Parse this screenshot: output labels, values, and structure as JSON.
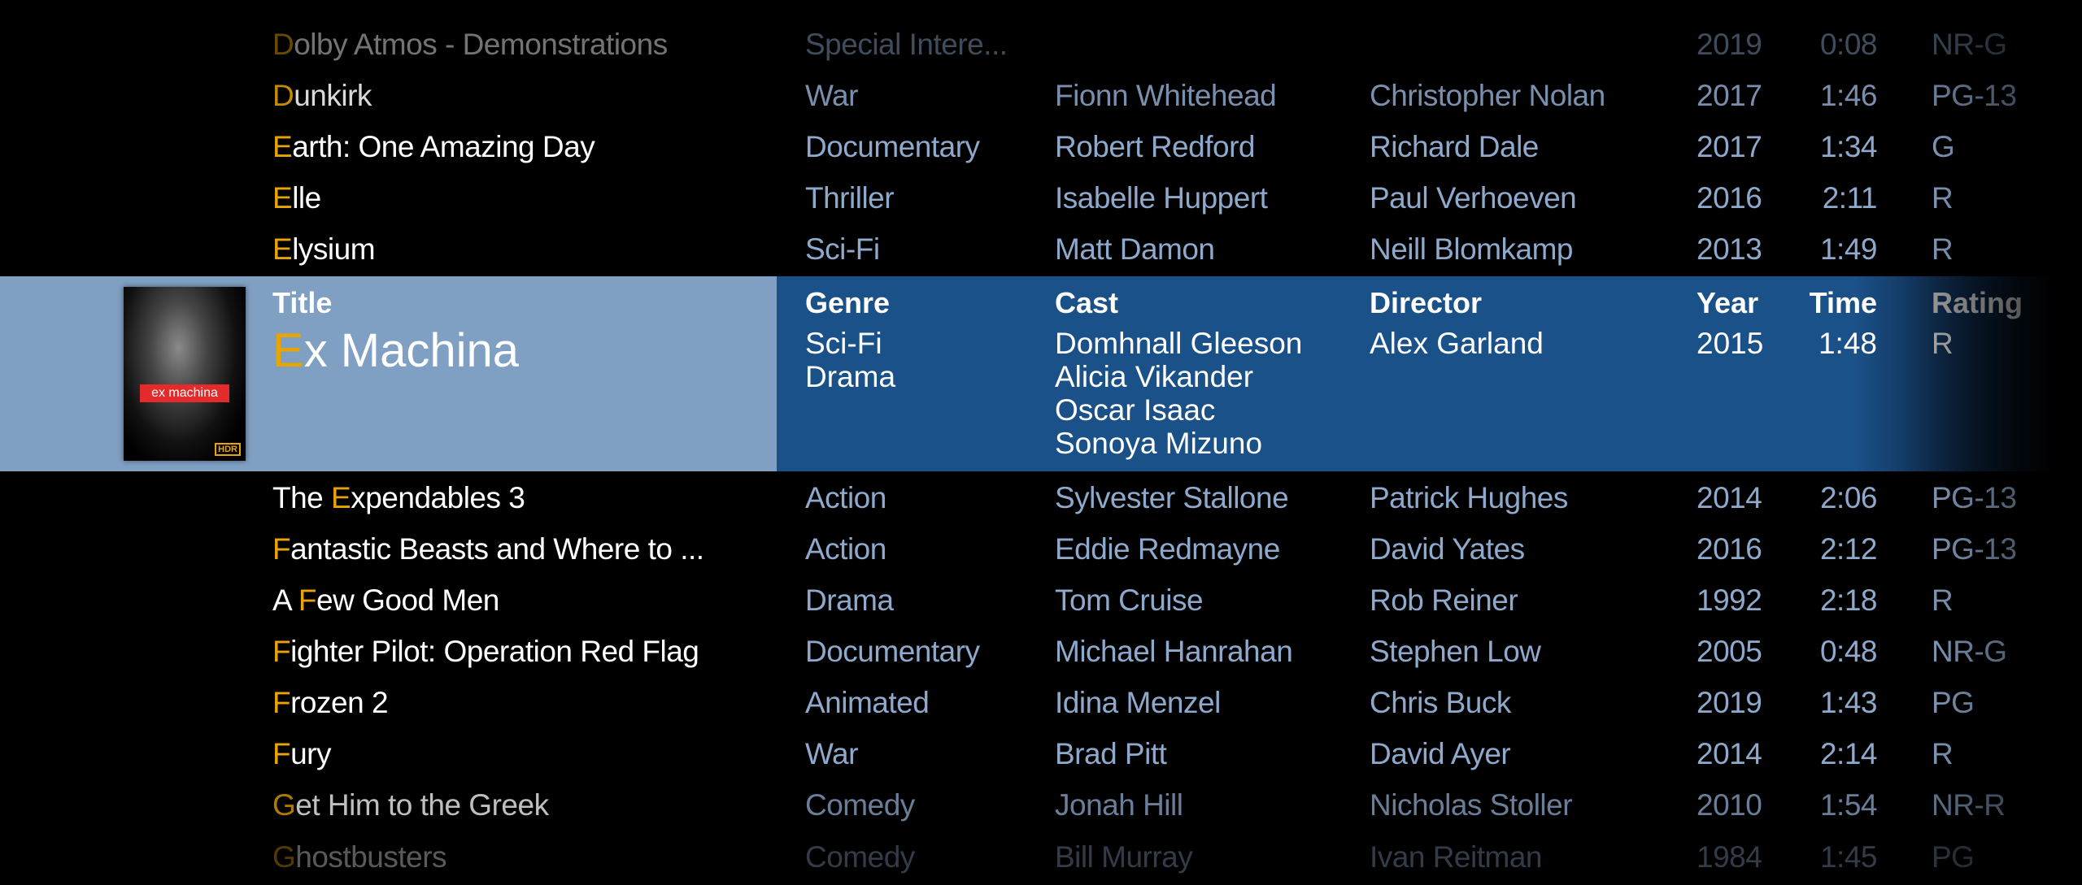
{
  "colors": {
    "accent_letter": "#e8a400",
    "selected_left": "#7f9fc3",
    "selected_right": "#1b5189",
    "text_meta": "#8fa9cc"
  },
  "rows_above": [
    {
      "pre": "",
      "letter": "D",
      "rest": "olby Atmos - Demonstrations",
      "genre": "Special Intere...",
      "cast": "",
      "director": "",
      "year": "2019",
      "time": "0:08",
      "rating": "NR-G"
    },
    {
      "pre": "",
      "letter": "D",
      "rest": "unkirk",
      "genre": "War",
      "cast": "Fionn Whitehead",
      "director": "Christopher Nolan",
      "year": "2017",
      "time": "1:46",
      "rating": "PG-13"
    },
    {
      "pre": "",
      "letter": "E",
      "rest": "arth: One Amazing Day",
      "genre": "Documentary",
      "cast": "Robert Redford",
      "director": "Richard Dale",
      "year": "2017",
      "time": "1:34",
      "rating": "G"
    },
    {
      "pre": "",
      "letter": "E",
      "rest": "lle",
      "genre": "Thriller",
      "cast": "Isabelle Huppert",
      "director": "Paul Verhoeven",
      "year": "2016",
      "time": "2:11",
      "rating": "R"
    },
    {
      "pre": "",
      "letter": "E",
      "rest": "lysium",
      "genre": "Sci-Fi",
      "cast": "Matt Damon",
      "director": "Neill Blomkamp",
      "year": "2013",
      "time": "1:49",
      "rating": "R"
    }
  ],
  "selected": {
    "headers": {
      "title": "Title",
      "genre": "Genre",
      "cast": "Cast",
      "director": "Director",
      "year": "Year",
      "time": "Time",
      "rating": "Rating"
    },
    "letter": "E",
    "rest": "x Machina",
    "genres": [
      "Sci-Fi",
      "Drama"
    ],
    "cast": [
      "Domhnall Gleeson",
      "Alicia Vikander",
      "Oscar Isaac",
      "Sonoya Mizuno"
    ],
    "director": "Alex Garland",
    "year": "2015",
    "time": "1:48",
    "rating": "R",
    "poster": {
      "logo_text": "ex machina",
      "badge": "HDR"
    }
  },
  "rows_below": [
    {
      "pre": "The ",
      "letter": "E",
      "rest": "xpendables 3",
      "genre": "Action",
      "cast": "Sylvester Stallone",
      "director": "Patrick Hughes",
      "year": "2014",
      "time": "2:06",
      "rating": "PG-13"
    },
    {
      "pre": "",
      "letter": "F",
      "rest": "antastic Beasts and Where to ...",
      "genre": "Action",
      "cast": "Eddie Redmayne",
      "director": "David Yates",
      "year": "2016",
      "time": "2:12",
      "rating": "PG-13"
    },
    {
      "pre": "A ",
      "letter": "F",
      "rest": "ew Good Men",
      "genre": "Drama",
      "cast": "Tom Cruise",
      "director": "Rob Reiner",
      "year": "1992",
      "time": "2:18",
      "rating": "R"
    },
    {
      "pre": "",
      "letter": "F",
      "rest": "ighter Pilot: Operation Red Flag",
      "genre": "Documentary",
      "cast": "Michael Hanrahan",
      "director": "Stephen Low",
      "year": "2005",
      "time": "0:48",
      "rating": "NR-G"
    },
    {
      "pre": "",
      "letter": "F",
      "rest": "rozen 2",
      "genre": "Animated",
      "cast": "Idina Menzel",
      "director": "Chris Buck",
      "year": "2019",
      "time": "1:43",
      "rating": "PG"
    },
    {
      "pre": "",
      "letter": "F",
      "rest": "ury",
      "genre": "War",
      "cast": "Brad Pitt",
      "director": "David Ayer",
      "year": "2014",
      "time": "2:14",
      "rating": "R"
    },
    {
      "pre": "",
      "letter": "G",
      "rest": "et Him to the Greek",
      "genre": "Comedy",
      "cast": "Jonah Hill",
      "director": "Nicholas Stoller",
      "year": "2010",
      "time": "1:54",
      "rating": "NR-R"
    },
    {
      "pre": "",
      "letter": "G",
      "rest": "hostbusters",
      "genre": "Comedy",
      "cast": "Bill Murray",
      "director": "Ivan Reitman",
      "year": "1984",
      "time": "1:45",
      "rating": "PG"
    }
  ]
}
